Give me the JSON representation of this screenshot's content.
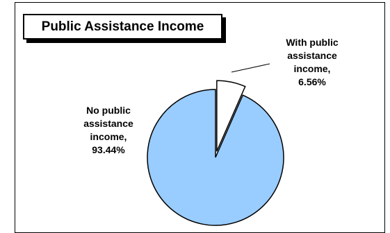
{
  "chart_data": {
    "type": "pie",
    "title": "Public Assistance Income",
    "slices": [
      {
        "name": "With public assistance income",
        "label_lines": [
          "With public",
          "assistance",
          "income,",
          "6.56%"
        ],
        "value": 6.56,
        "color": "#ffffff",
        "exploded": true
      },
      {
        "name": "No public assistance income",
        "label_lines": [
          "No public",
          "assistance",
          "income,",
          "93.44%"
        ],
        "value": 93.44,
        "color": "#99ccff",
        "exploded": false
      }
    ]
  }
}
